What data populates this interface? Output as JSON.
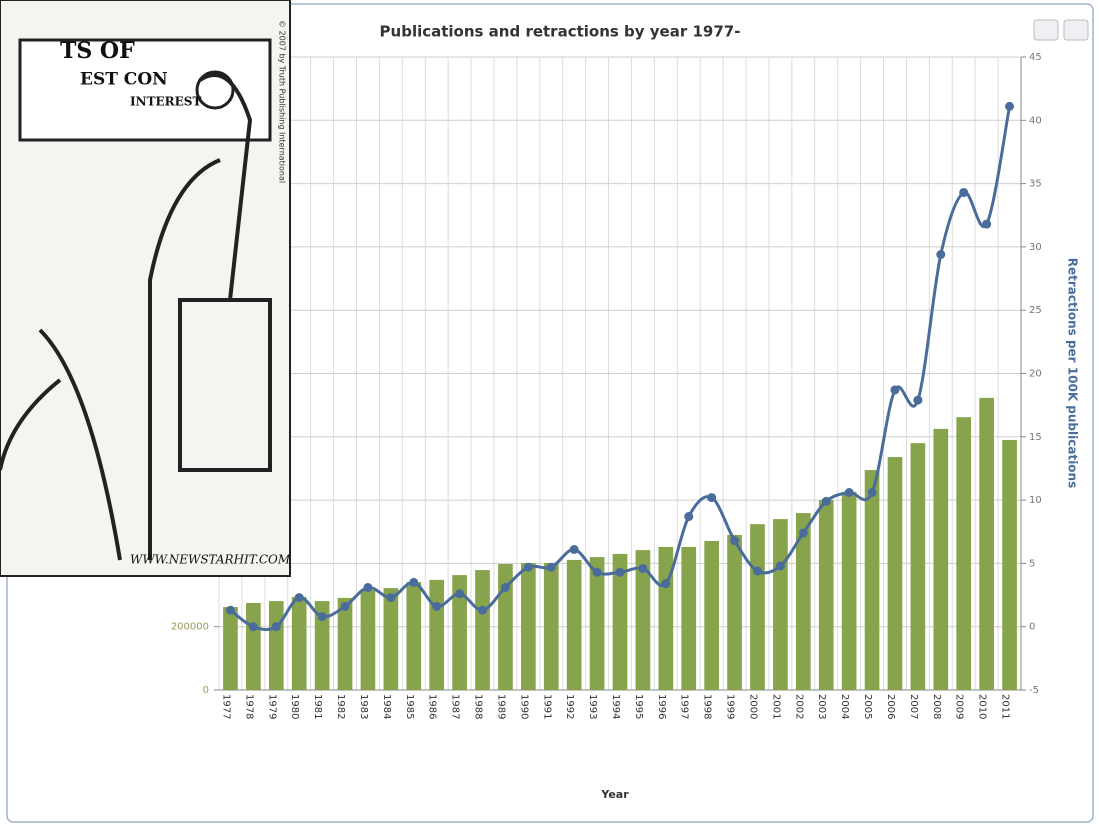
{
  "chart_data": {
    "type": "bar",
    "title": "Publications and retractions by year 1977-",
    "x_label": "Year",
    "y2_label": "Retractions per  100K publications",
    "categories": [
      "1977",
      "1978",
      "1979",
      "1980",
      "1981",
      "1982",
      "1983",
      "1984",
      "1985",
      "1986",
      "1987",
      "1988",
      "1989",
      "1990",
      "1991",
      "1992",
      "1993",
      "1994",
      "1995",
      "1996",
      "1997",
      "1998",
      "1999",
      "2000",
      "2001",
      "2002",
      "2003",
      "2004",
      "2005",
      "2006",
      "2007",
      "2008",
      "2009",
      "2010",
      "2011"
    ],
    "series": [
      {
        "type": "bar",
        "color": "#87a44c",
        "values": [
          262000,
          275000,
          281000,
          294000,
          281000,
          291000,
          316000,
          322000,
          341000,
          348000,
          363000,
          379000,
          398000,
          401000,
          401000,
          411000,
          420000,
          430000,
          442000,
          452000,
          452000,
          471000,
          490000,
          524000,
          540000,
          559000,
          600000,
          626000,
          695000,
          736000,
          780000,
          825000,
          862000,
          923000,
          790000
        ]
      },
      {
        "type": "line",
        "axis": "y2",
        "color": "#4a6c9b",
        "values": [
          1.3,
          0,
          0,
          2.3,
          0.8,
          1.6,
          3.1,
          2.3,
          3.5,
          1.6,
          2.6,
          1.3,
          3.1,
          4.7,
          4.7,
          6.1,
          4.3,
          4.3,
          4.6,
          3.4,
          8.7,
          10.2,
          6.8,
          4.4,
          4.8,
          7.4,
          9.9,
          10.6,
          10.6,
          18.7,
          17.9,
          29.4,
          34.3,
          31.8,
          41.1
        ]
      }
    ],
    "ylim": [
      0,
      2000000
    ],
    "yticks": [
      0,
      200000
    ],
    "y2lim": [
      -5,
      45
    ],
    "y2ticks": [
      -5,
      0,
      5,
      10,
      15,
      20,
      25,
      30,
      35,
      40,
      45
    ],
    "grid": true
  },
  "overlay_image": {
    "texts": [
      "TS OF",
      "EST CON",
      "INTEREST",
      "© 2007 by Truth Publishing International",
      "WWW.NEWSTARHIT.COM"
    ]
  }
}
